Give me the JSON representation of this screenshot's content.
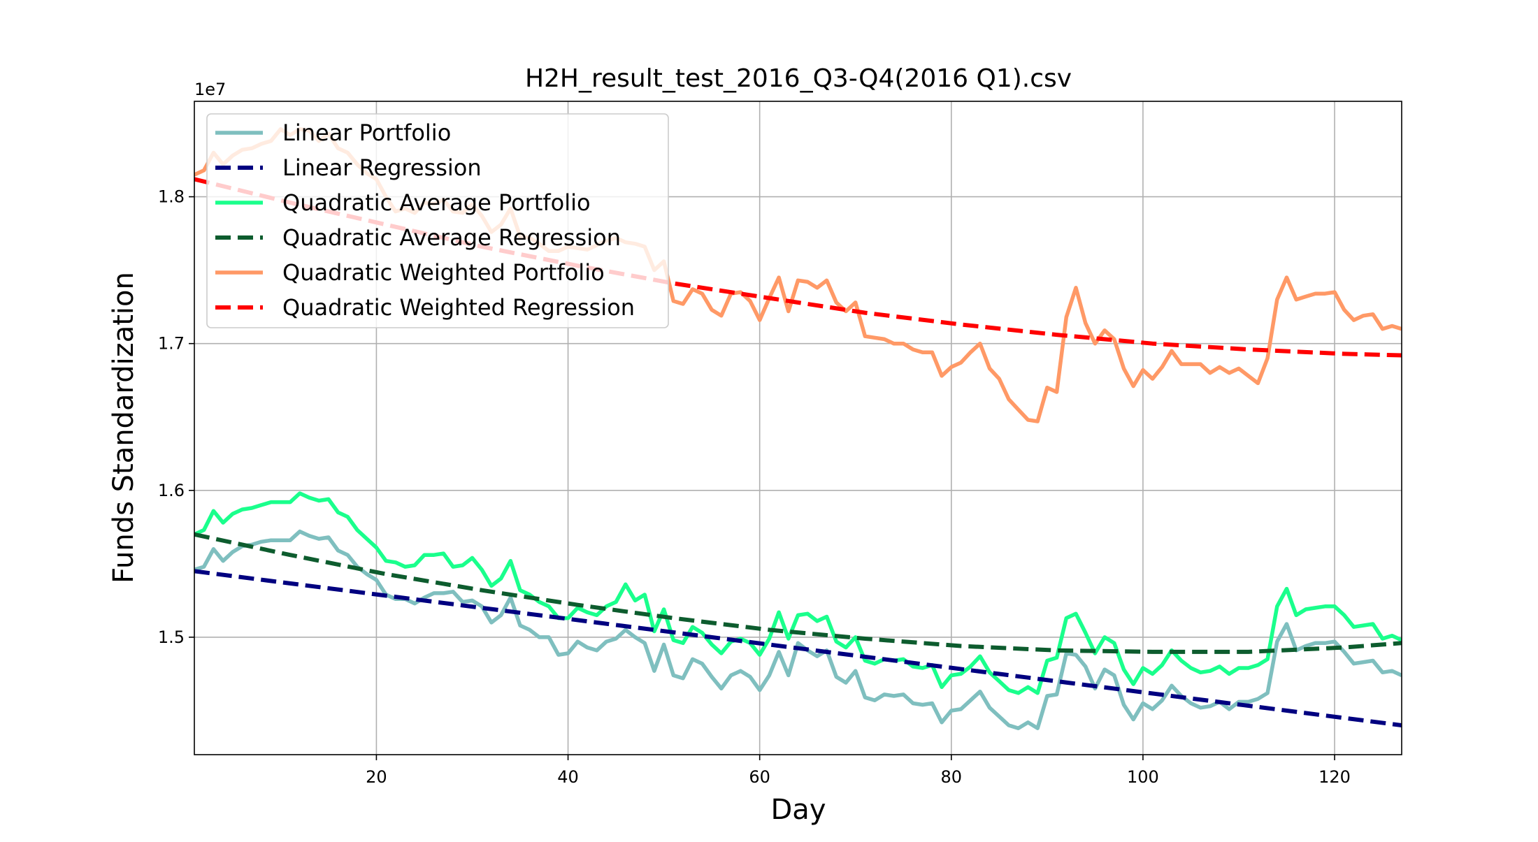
{
  "chart_data": {
    "type": "line",
    "title": "H2H_result_test_2016_Q3-Q4(2016 Q1).csv",
    "xlabel": "Day",
    "ylabel": "Funds Standardization",
    "y_offset_label": "1e7",
    "y_scale": 10000000,
    "xlim": [
      1,
      127
    ],
    "ylim": [
      1.42,
      1.865
    ],
    "x_ticks": [
      20,
      40,
      60,
      80,
      100,
      120
    ],
    "y_ticks": [
      1.5,
      1.6,
      1.7,
      1.8
    ],
    "grid": true,
    "legend_position": "upper-left",
    "series": [
      {
        "name": "Linear Portfolio",
        "color": "#7fbfbf",
        "style": "solid",
        "x": [
          1,
          2,
          3,
          4,
          5,
          6,
          7,
          8,
          9,
          10,
          11,
          12,
          13,
          14,
          15,
          16,
          17,
          18,
          19,
          20,
          21,
          22,
          23,
          24,
          25,
          26,
          27,
          28,
          29,
          30,
          31,
          32,
          33,
          34,
          35,
          36,
          37,
          38,
          39,
          40,
          41,
          42,
          43,
          44,
          45,
          46,
          47,
          48,
          49,
          50,
          51,
          52,
          53,
          54,
          55,
          56,
          57,
          58,
          59,
          60,
          61,
          62,
          63,
          64,
          65,
          66,
          67,
          68,
          69,
          70,
          71,
          72,
          73,
          74,
          75,
          76,
          77,
          78,
          79,
          80,
          81,
          82,
          83,
          84,
          85,
          86,
          87,
          88,
          89,
          90,
          91,
          92,
          93,
          94,
          95,
          96,
          97,
          98,
          99,
          100,
          101,
          102,
          103,
          104,
          105,
          106,
          107,
          108,
          109,
          110,
          111,
          112,
          113,
          114,
          115,
          116,
          117,
          118,
          119,
          120,
          121,
          122,
          123,
          124,
          125,
          126,
          127
        ],
        "y": [
          1.546,
          1.548,
          1.56,
          1.552,
          1.558,
          1.562,
          1.563,
          1.565,
          1.566,
          1.566,
          1.566,
          1.572,
          1.569,
          1.567,
          1.568,
          1.559,
          1.556,
          1.548,
          1.543,
          1.539,
          1.529,
          1.526,
          1.526,
          1.523,
          1.527,
          1.53,
          1.53,
          1.531,
          1.524,
          1.525,
          1.521,
          1.51,
          1.515,
          1.527,
          1.508,
          1.505,
          1.5,
          1.5,
          1.488,
          1.489,
          1.497,
          1.493,
          1.491,
          1.497,
          1.499,
          1.505,
          1.5,
          1.496,
          1.477,
          1.495,
          1.474,
          1.472,
          1.485,
          1.482,
          1.473,
          1.465,
          1.474,
          1.477,
          1.473,
          1.464,
          1.474,
          1.49,
          1.474,
          1.496,
          1.491,
          1.487,
          1.491,
          1.473,
          1.469,
          1.477,
          1.459,
          1.457,
          1.461,
          1.46,
          1.461,
          1.455,
          1.454,
          1.455,
          1.442,
          1.45,
          1.451,
          1.457,
          1.463,
          1.452,
          1.446,
          1.44,
          1.438,
          1.442,
          1.438,
          1.46,
          1.461,
          1.489,
          1.488,
          1.48,
          1.465,
          1.478,
          1.474,
          1.454,
          1.444,
          1.455,
          1.451,
          1.457,
          1.467,
          1.46,
          1.455,
          1.452,
          1.453,
          1.456,
          1.451,
          1.456,
          1.456,
          1.458,
          1.462,
          1.497,
          1.509,
          1.491,
          1.494,
          1.496,
          1.496,
          1.497,
          1.49,
          1.482,
          1.483,
          1.484,
          1.476,
          1.477,
          1.474
        ]
      },
      {
        "name": "Linear Regression",
        "color": "#000080",
        "style": "dashed",
        "x": [
          1,
          127
        ],
        "y": [
          1.545,
          1.44
        ]
      },
      {
        "name": "Quadratic Average Portfolio",
        "color": "#1aff8c",
        "style": "solid",
        "x": [
          1,
          2,
          3,
          4,
          5,
          6,
          7,
          8,
          9,
          10,
          11,
          12,
          13,
          14,
          15,
          16,
          17,
          18,
          19,
          20,
          21,
          22,
          23,
          24,
          25,
          26,
          27,
          28,
          29,
          30,
          31,
          32,
          33,
          34,
          35,
          36,
          37,
          38,
          39,
          40,
          41,
          42,
          43,
          44,
          45,
          46,
          47,
          48,
          49,
          50,
          51,
          52,
          53,
          54,
          55,
          56,
          57,
          58,
          59,
          60,
          61,
          62,
          63,
          64,
          65,
          66,
          67,
          68,
          69,
          70,
          71,
          72,
          73,
          74,
          75,
          76,
          77,
          78,
          79,
          80,
          81,
          82,
          83,
          84,
          85,
          86,
          87,
          88,
          89,
          90,
          91,
          92,
          93,
          94,
          95,
          96,
          97,
          98,
          99,
          100,
          101,
          102,
          103,
          104,
          105,
          106,
          107,
          108,
          109,
          110,
          111,
          112,
          113,
          114,
          115,
          116,
          117,
          118,
          119,
          120,
          121,
          122,
          123,
          124,
          125,
          126,
          127
        ],
        "y": [
          1.57,
          1.573,
          1.586,
          1.578,
          1.584,
          1.587,
          1.588,
          1.59,
          1.592,
          1.592,
          1.592,
          1.598,
          1.595,
          1.593,
          1.594,
          1.585,
          1.582,
          1.573,
          1.567,
          1.561,
          1.552,
          1.551,
          1.548,
          1.549,
          1.556,
          1.556,
          1.557,
          1.548,
          1.549,
          1.554,
          1.546,
          1.535,
          1.54,
          1.552,
          1.532,
          1.529,
          1.524,
          1.521,
          1.513,
          1.513,
          1.52,
          1.517,
          1.515,
          1.521,
          1.524,
          1.536,
          1.525,
          1.529,
          1.504,
          1.519,
          1.498,
          1.496,
          1.507,
          1.503,
          1.495,
          1.489,
          1.497,
          1.499,
          1.496,
          1.488,
          1.499,
          1.517,
          1.499,
          1.515,
          1.516,
          1.511,
          1.514,
          1.497,
          1.493,
          1.5,
          1.484,
          1.482,
          1.485,
          1.484,
          1.485,
          1.48,
          1.479,
          1.481,
          1.466,
          1.474,
          1.475,
          1.48,
          1.487,
          1.476,
          1.47,
          1.464,
          1.462,
          1.466,
          1.462,
          1.484,
          1.486,
          1.513,
          1.516,
          1.503,
          1.489,
          1.5,
          1.496,
          1.478,
          1.468,
          1.479,
          1.475,
          1.481,
          1.491,
          1.484,
          1.479,
          1.476,
          1.477,
          1.48,
          1.475,
          1.479,
          1.479,
          1.481,
          1.485,
          1.521,
          1.533,
          1.515,
          1.519,
          1.52,
          1.521,
          1.521,
          1.515,
          1.507,
          1.508,
          1.509,
          1.499,
          1.501,
          1.498
        ]
      },
      {
        "name": "Quadratic Average Regression",
        "color": "#0d5c2e",
        "style": "dashed",
        "x": [
          1,
          11,
          21,
          31,
          41,
          51,
          61,
          71,
          81,
          91,
          101,
          111,
          121,
          127
        ],
        "y": [
          1.57,
          1.556,
          1.543,
          1.532,
          1.522,
          1.513,
          1.505,
          1.499,
          1.494,
          1.491,
          1.49,
          1.49,
          1.493,
          1.496
        ]
      },
      {
        "name": "Quadratic Weighted Portfolio",
        "color": "#ff9966",
        "style": "solid",
        "x": [
          1,
          2,
          3,
          4,
          5,
          6,
          7,
          8,
          9,
          10,
          11,
          12,
          13,
          14,
          15,
          16,
          17,
          18,
          19,
          20,
          21,
          22,
          23,
          24,
          25,
          26,
          27,
          28,
          29,
          30,
          31,
          32,
          33,
          34,
          35,
          36,
          37,
          38,
          39,
          40,
          41,
          42,
          43,
          44,
          45,
          46,
          47,
          48,
          49,
          50,
          51,
          52,
          53,
          54,
          55,
          56,
          57,
          58,
          59,
          60,
          61,
          62,
          63,
          64,
          65,
          66,
          67,
          68,
          69,
          70,
          71,
          72,
          73,
          74,
          75,
          76,
          77,
          78,
          79,
          80,
          81,
          82,
          83,
          84,
          85,
          86,
          87,
          88,
          89,
          90,
          91,
          92,
          93,
          94,
          95,
          96,
          97,
          98,
          99,
          100,
          101,
          102,
          103,
          104,
          105,
          106,
          107,
          108,
          109,
          110,
          111,
          112,
          113,
          114,
          115,
          116,
          117,
          118,
          119,
          120,
          121,
          122,
          123,
          124,
          125,
          126,
          127
        ],
        "y": [
          1.815,
          1.818,
          1.83,
          1.822,
          1.828,
          1.832,
          1.833,
          1.836,
          1.838,
          1.846,
          1.842,
          1.846,
          1.845,
          1.838,
          1.843,
          1.833,
          1.83,
          1.822,
          1.816,
          1.812,
          1.8,
          1.79,
          1.792,
          1.789,
          1.796,
          1.795,
          1.798,
          1.79,
          1.789,
          1.795,
          1.787,
          1.776,
          1.781,
          1.792,
          1.773,
          1.772,
          1.768,
          1.763,
          1.763,
          1.766,
          1.765,
          1.764,
          1.767,
          1.77,
          1.772,
          1.769,
          1.768,
          1.766,
          1.75,
          1.756,
          1.729,
          1.727,
          1.737,
          1.734,
          1.723,
          1.719,
          1.734,
          1.735,
          1.729,
          1.716,
          1.731,
          1.745,
          1.722,
          1.743,
          1.742,
          1.738,
          1.743,
          1.728,
          1.722,
          1.728,
          1.705,
          1.704,
          1.703,
          1.7,
          1.7,
          1.696,
          1.694,
          1.694,
          1.678,
          1.684,
          1.687,
          1.694,
          1.7,
          1.683,
          1.676,
          1.662,
          1.655,
          1.648,
          1.647,
          1.67,
          1.667,
          1.718,
          1.738,
          1.714,
          1.7,
          1.709,
          1.703,
          1.683,
          1.671,
          1.682,
          1.676,
          1.684,
          1.695,
          1.686,
          1.686,
          1.686,
          1.68,
          1.684,
          1.68,
          1.683,
          1.678,
          1.673,
          1.69,
          1.73,
          1.745,
          1.73,
          1.732,
          1.734,
          1.734,
          1.735,
          1.723,
          1.716,
          1.719,
          1.72,
          1.71,
          1.712,
          1.71
        ]
      },
      {
        "name": "Quadratic Weighted Regression",
        "color": "#ff0000",
        "style": "dashed",
        "x": [
          1,
          11,
          21,
          31,
          41,
          51,
          61,
          71,
          81,
          91,
          101,
          111,
          121,
          127
        ],
        "y": [
          1.812,
          1.796,
          1.781,
          1.766,
          1.753,
          1.741,
          1.731,
          1.721,
          1.713,
          1.706,
          1.7,
          1.696,
          1.693,
          1.692
        ]
      }
    ]
  }
}
